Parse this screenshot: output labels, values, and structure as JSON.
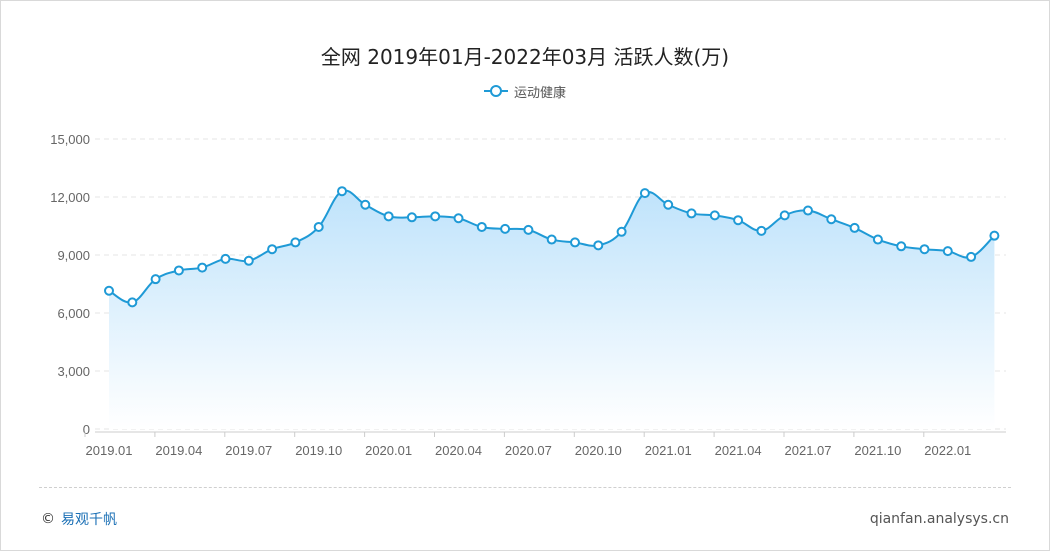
{
  "colors": {
    "line": "#1f9ad6",
    "area_top": "#bfe3fb",
    "area_bottom": "#ffffff",
    "grid": "#e6e6e6",
    "axis_text": "#666666"
  },
  "footer": {
    "copyright_symbol": "©",
    "brand": "易观千帆",
    "url": "qianfan.analysys.cn"
  },
  "chart_data": {
    "type": "area",
    "title": "全网 2019年01月-2022年03月 活跃人数(万)",
    "legend_position": "top-center",
    "grid": true,
    "ylim": [
      0,
      15000
    ],
    "y_ticks": [
      "0",
      "3,000",
      "6,000",
      "9,000",
      "12,000",
      "15,000"
    ],
    "x_tick_labels": [
      "2019.01",
      "2019.04",
      "2019.07",
      "2019.10",
      "2020.01",
      "2020.04",
      "2020.07",
      "2020.10",
      "2021.01",
      "2021.04",
      "2021.07",
      "2021.10",
      "2022.01"
    ],
    "x": [
      "2019.01",
      "2019.02",
      "2019.03",
      "2019.04",
      "2019.05",
      "2019.06",
      "2019.07",
      "2019.08",
      "2019.09",
      "2019.10",
      "2019.11",
      "2019.12",
      "2020.01",
      "2020.02",
      "2020.03",
      "2020.04",
      "2020.05",
      "2020.06",
      "2020.07",
      "2020.08",
      "2020.09",
      "2020.10",
      "2020.11",
      "2020.12",
      "2021.01",
      "2021.02",
      "2021.03",
      "2021.04",
      "2021.05",
      "2021.06",
      "2021.07",
      "2021.08",
      "2021.09",
      "2021.10",
      "2021.11",
      "2021.12",
      "2022.01",
      "2022.02",
      "2022.03"
    ],
    "series": [
      {
        "name": "运动健康",
        "values": [
          7150,
          6550,
          7750,
          8200,
          8350,
          8800,
          8700,
          9300,
          9650,
          10450,
          12300,
          11600,
          11000,
          10950,
          11000,
          10900,
          10450,
          10350,
          10300,
          9800,
          9650,
          9500,
          10200,
          12200,
          11600,
          11150,
          11050,
          10800,
          10250,
          11050,
          11300,
          10850,
          10400,
          9800,
          9450,
          9300,
          9200,
          8900,
          10000
        ]
      }
    ]
  }
}
